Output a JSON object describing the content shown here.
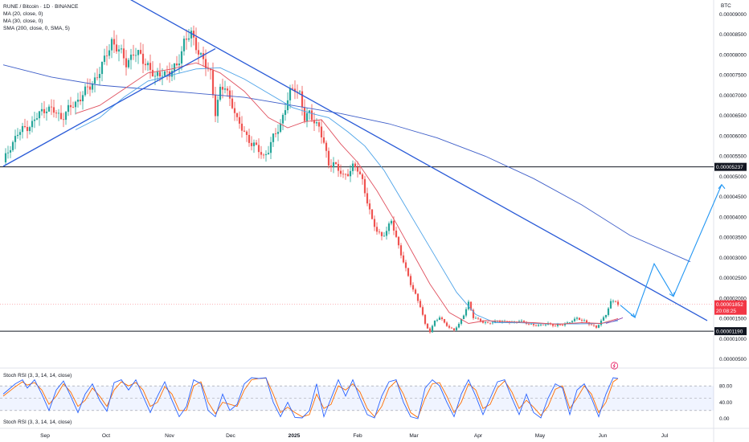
{
  "legend": {
    "symbol": "RUNE / Bitcoin · 1D · BINANCE",
    "ma20": "MA (20, close, 0)",
    "ma30": "MA (30, close, 0)",
    "sma200": "SMA (200, close, 0, SMA, 5)"
  },
  "stoch_legend_top": "Stoch RSI (3, 3, 14, 14, close)",
  "stoch_legend_bottom": "Stoch RSI (3, 3, 14, 14, close)",
  "currency": "BTC",
  "colors": {
    "up": "#26a69a",
    "down": "#ef5350",
    "trend": "#2a5bd7",
    "ma20": "#e05260",
    "ma30": "#4da3e8",
    "sma200": "#3f5fc9",
    "rsi_k": "#2962ff",
    "rsi_d": "#ff6d00",
    "current_tag": "#f23645",
    "level_tag": "#131722"
  },
  "chart_data": {
    "type": "candlestick",
    "x_ticks": [
      "Sep",
      "Oct",
      "Nov",
      "Dec",
      "2025",
      "Feb",
      "Mar",
      "Apr",
      "May",
      "Jun",
      "Jul"
    ],
    "y_ticks": [
      "0.00009000",
      "0.00008500",
      "0.00008000",
      "0.00007500",
      "0.00007000",
      "0.00006500",
      "0.00006000",
      "0.00005500",
      "0.00005000",
      "0.00004500",
      "0.00004000",
      "0.00003500",
      "0.00003000",
      "0.00002500",
      "0.00002000",
      "0.00001500",
      "0.00001000",
      "0.00000500"
    ],
    "y_range": [
      4e-06,
      9.15e-05
    ],
    "horizontal_levels": [
      {
        "value": "0.00005237",
        "price": 5.237e-05
      },
      {
        "value": "0.00001190",
        "price": 1.19e-05
      }
    ],
    "current_price": {
      "value": "0.00001852",
      "countdown": "20:08:25",
      "price": 1.852e-05
    },
    "price_path": [
      [
        0,
        5.35e-05
      ],
      [
        3,
        5.75e-05
      ],
      [
        6,
        6.05e-05
      ],
      [
        9,
        6.2e-05
      ],
      [
        12,
        6.3e-05
      ],
      [
        15,
        6.55e-05
      ],
      [
        18,
        6.7e-05
      ],
      [
        21,
        6.6e-05
      ],
      [
        24,
        6.45e-05
      ],
      [
        27,
        6.65e-05
      ],
      [
        30,
        6.8e-05
      ],
      [
        33,
        7.05e-05
      ],
      [
        36,
        7.2e-05
      ],
      [
        39,
        7.5e-05
      ],
      [
        42,
        7.85e-05
      ],
      [
        45,
        8.35e-05
      ],
      [
        48,
        8.1e-05
      ],
      [
        51,
        7.8e-05
      ],
      [
        54,
        8.05e-05
      ],
      [
        57,
        7.95e-05
      ],
      [
        60,
        7.75e-05
      ],
      [
        63,
        7.4e-05
      ],
      [
        66,
        7.6e-05
      ],
      [
        69,
        7.5e-05
      ],
      [
        72,
        7.75e-05
      ],
      [
        75,
        8.3e-05
      ],
      [
        78,
        8.5e-05
      ],
      [
        80,
        8.25e-05
      ],
      [
        82,
        7.95e-05
      ],
      [
        84,
        7.7e-05
      ],
      [
        86,
        7.55e-05
      ],
      [
        88,
        6.6e-05
      ],
      [
        90,
        7.1e-05
      ],
      [
        92,
        7.2e-05
      ],
      [
        95,
        6.8e-05
      ],
      [
        97,
        6.35e-05
      ],
      [
        100,
        6.1e-05
      ],
      [
        103,
        5.8e-05
      ],
      [
        106,
        5.65e-05
      ],
      [
        108,
        5.5e-05
      ],
      [
        110,
        5.65e-05
      ],
      [
        112,
        5.95e-05
      ],
      [
        115,
        6.3e-05
      ],
      [
        117,
        6.7e-05
      ],
      [
        119,
        7.05e-05
      ],
      [
        121,
        7.2e-05
      ],
      [
        123,
        7.05e-05
      ],
      [
        125,
        6.4e-05
      ],
      [
        127,
        6.55e-05
      ],
      [
        129,
        6.4e-05
      ],
      [
        131,
        6.2e-05
      ],
      [
        133,
        5.8e-05
      ],
      [
        135,
        5.3e-05
      ],
      [
        137,
        5.35e-05
      ],
      [
        139,
        5.15e-05
      ],
      [
        141,
        5e-05
      ],
      [
        143,
        5.1e-05
      ],
      [
        145,
        5.25e-05
      ],
      [
        147,
        5.15e-05
      ],
      [
        149,
        4.9e-05
      ],
      [
        151,
        4.4e-05
      ],
      [
        153,
        3.9e-05
      ],
      [
        155,
        3.65e-05
      ],
      [
        157,
        3.55e-05
      ],
      [
        159,
        3.65e-05
      ],
      [
        161,
        3.9e-05
      ],
      [
        163,
        3.5e-05
      ],
      [
        165,
        3.1e-05
      ],
      [
        167,
        2.7e-05
      ],
      [
        169,
        2.35e-05
      ],
      [
        171,
        2.1e-05
      ],
      [
        173,
        1.8e-05
      ],
      [
        175,
        1.35e-05
      ],
      [
        177,
        1.18e-05
      ],
      [
        179,
        1.45e-05
      ],
      [
        181,
        1.52e-05
      ],
      [
        183,
        1.4e-05
      ],
      [
        185,
        1.28e-05
      ],
      [
        187,
        1.22e-05
      ],
      [
        189,
        1.35e-05
      ],
      [
        191,
        1.6e-05
      ],
      [
        193,
        1.9e-05
      ],
      [
        195,
        1.52e-05
      ],
      [
        197,
        1.48e-05
      ],
      [
        199,
        1.42e-05
      ],
      [
        201,
        1.38e-05
      ],
      [
        203,
        1.4e-05
      ],
      [
        205,
        1.45e-05
      ],
      [
        208,
        1.42e-05
      ],
      [
        211,
        1.4e-05
      ],
      [
        214,
        1.45e-05
      ],
      [
        217,
        1.38e-05
      ],
      [
        220,
        1.35e-05
      ],
      [
        223,
        1.33e-05
      ],
      [
        226,
        1.38e-05
      ],
      [
        229,
        1.32e-05
      ],
      [
        232,
        1.35e-05
      ],
      [
        235,
        1.42e-05
      ],
      [
        238,
        1.5e-05
      ],
      [
        241,
        1.45e-05
      ],
      [
        244,
        1.33e-05
      ],
      [
        246,
        1.28e-05
      ],
      [
        248,
        1.45e-05
      ],
      [
        250,
        1.6e-05
      ],
      [
        252,
        1.9e-05
      ],
      [
        254,
        1.95e-05
      ],
      [
        255,
        1.852e-05
      ]
    ],
    "ma20_path": [
      [
        30,
        6.55e-05
      ],
      [
        40,
        6.75e-05
      ],
      [
        50,
        7.15e-05
      ],
      [
        60,
        7.55e-05
      ],
      [
        70,
        7.65e-05
      ],
      [
        80,
        7.8e-05
      ],
      [
        90,
        7.55e-05
      ],
      [
        100,
        7.1e-05
      ],
      [
        110,
        6.45e-05
      ],
      [
        118,
        6.2e-05
      ],
      [
        125,
        6.35e-05
      ],
      [
        132,
        6.4e-05
      ],
      [
        140,
        5.8e-05
      ],
      [
        147,
        5.35e-05
      ],
      [
        155,
        4.65e-05
      ],
      [
        163,
        3.85e-05
      ],
      [
        170,
        3.1e-05
      ],
      [
        177,
        2.35e-05
      ],
      [
        185,
        1.65e-05
      ],
      [
        193,
        1.38e-05
      ],
      [
        200,
        1.45e-05
      ],
      [
        210,
        1.42e-05
      ],
      [
        220,
        1.4e-05
      ],
      [
        230,
        1.36e-05
      ],
      [
        240,
        1.4e-05
      ],
      [
        248,
        1.38e-05
      ],
      [
        255,
        1.5e-05
      ]
    ],
    "ma30_path": [
      [
        30,
        6.15e-05
      ],
      [
        40,
        6.45e-05
      ],
      [
        50,
        6.95e-05
      ],
      [
        60,
        7.35e-05
      ],
      [
        70,
        7.5e-05
      ],
      [
        80,
        7.65e-05
      ],
      [
        90,
        7.68e-05
      ],
      [
        100,
        7.4e-05
      ],
      [
        110,
        7.05e-05
      ],
      [
        120,
        6.7e-05
      ],
      [
        128,
        6.55e-05
      ],
      [
        135,
        6.45e-05
      ],
      [
        143,
        6.1e-05
      ],
      [
        150,
        5.75e-05
      ],
      [
        158,
        5.15e-05
      ],
      [
        165,
        4.45e-05
      ],
      [
        172,
        3.75e-05
      ],
      [
        180,
        2.95e-05
      ],
      [
        188,
        2.15e-05
      ],
      [
        196,
        1.6e-05
      ],
      [
        204,
        1.4e-05
      ],
      [
        214,
        1.4e-05
      ],
      [
        226,
        1.37e-05
      ],
      [
        238,
        1.37e-05
      ],
      [
        248,
        1.38e-05
      ],
      [
        255,
        1.45e-05
      ]
    ],
    "sma200_path": [
      [
        0,
        7.75e-05
      ],
      [
        20,
        7.45e-05
      ],
      [
        40,
        7.25e-05
      ],
      [
        60,
        7.15e-05
      ],
      [
        80,
        7.05e-05
      ],
      [
        100,
        6.95e-05
      ],
      [
        120,
        6.75e-05
      ],
      [
        140,
        6.55e-05
      ],
      [
        160,
        6.3e-05
      ],
      [
        180,
        5.95e-05
      ],
      [
        200,
        5.5e-05
      ],
      [
        220,
        4.95e-05
      ],
      [
        240,
        4.3e-05
      ],
      [
        260,
        3.55e-05
      ],
      [
        285,
        2.9e-05
      ]
    ],
    "stoch_rsi_labels": [
      "80.00",
      "40.00",
      "0.00"
    ],
    "stoch_rsi_k": [
      [
        0,
        60
      ],
      [
        5,
        85
      ],
      [
        8,
        95
      ],
      [
        10,
        75
      ],
      [
        13,
        95
      ],
      [
        16,
        60
      ],
      [
        19,
        20
      ],
      [
        22,
        70
      ],
      [
        25,
        92
      ],
      [
        28,
        55
      ],
      [
        31,
        15
      ],
      [
        34,
        60
      ],
      [
        37,
        85
      ],
      [
        40,
        45
      ],
      [
        43,
        18
      ],
      [
        46,
        88
      ],
      [
        49,
        95
      ],
      [
        52,
        70
      ],
      [
        55,
        95
      ],
      [
        58,
        55
      ],
      [
        61,
        15
      ],
      [
        64,
        55
      ],
      [
        67,
        90
      ],
      [
        70,
        45
      ],
      [
        73,
        5
      ],
      [
        76,
        30
      ],
      [
        79,
        95
      ],
      [
        82,
        85
      ],
      [
        85,
        20
      ],
      [
        88,
        5
      ],
      [
        91,
        60
      ],
      [
        94,
        20
      ],
      [
        97,
        35
      ],
      [
        100,
        85
      ],
      [
        103,
        100
      ],
      [
        106,
        98
      ],
      [
        109,
        100
      ],
      [
        112,
        40
      ],
      [
        115,
        5
      ],
      [
        118,
        40
      ],
      [
        121,
        3
      ],
      [
        124,
        2
      ],
      [
        127,
        20
      ],
      [
        130,
        85
      ],
      [
        133,
        5
      ],
      [
        136,
        50
      ],
      [
        139,
        95
      ],
      [
        142,
        55
      ],
      [
        145,
        95
      ],
      [
        148,
        50
      ],
      [
        151,
        10
      ],
      [
        154,
        2
      ],
      [
        157,
        55
      ],
      [
        160,
        90
      ],
      [
        163,
        95
      ],
      [
        166,
        40
      ],
      [
        169,
        5
      ],
      [
        172,
        0
      ],
      [
        175,
        75
      ],
      [
        178,
        95
      ],
      [
        181,
        80
      ],
      [
        184,
        40
      ],
      [
        187,
        5
      ],
      [
        190,
        60
      ],
      [
        193,
        95
      ],
      [
        196,
        55
      ],
      [
        199,
        10
      ],
      [
        202,
        50
      ],
      [
        205,
        90
      ],
      [
        208,
        95
      ],
      [
        211,
        50
      ],
      [
        214,
        10
      ],
      [
        217,
        60
      ],
      [
        220,
        15
      ],
      [
        223,
        2
      ],
      [
        226,
        50
      ],
      [
        229,
        85
      ],
      [
        232,
        75
      ],
      [
        235,
        10
      ],
      [
        238,
        70
      ],
      [
        241,
        85
      ],
      [
        244,
        50
      ],
      [
        247,
        5
      ],
      [
        250,
        60
      ],
      [
        253,
        100
      ],
      [
        255,
        98
      ]
    ],
    "stoch_rsi_d": [
      [
        0,
        55
      ],
      [
        5,
        78
      ],
      [
        8,
        90
      ],
      [
        10,
        82
      ],
      [
        13,
        88
      ],
      [
        16,
        70
      ],
      [
        19,
        35
      ],
      [
        22,
        55
      ],
      [
        25,
        85
      ],
      [
        28,
        65
      ],
      [
        31,
        30
      ],
      [
        34,
        45
      ],
      [
        37,
        75
      ],
      [
        40,
        55
      ],
      [
        43,
        30
      ],
      [
        46,
        70
      ],
      [
        49,
        90
      ],
      [
        52,
        80
      ],
      [
        55,
        88
      ],
      [
        58,
        70
      ],
      [
        61,
        30
      ],
      [
        64,
        40
      ],
      [
        67,
        78
      ],
      [
        70,
        60
      ],
      [
        73,
        20
      ],
      [
        76,
        20
      ],
      [
        79,
        80
      ],
      [
        82,
        90
      ],
      [
        85,
        40
      ],
      [
        88,
        12
      ],
      [
        91,
        40
      ],
      [
        94,
        35
      ],
      [
        97,
        30
      ],
      [
        100,
        70
      ],
      [
        103,
        95
      ],
      [
        106,
        98
      ],
      [
        109,
        99
      ],
      [
        112,
        60
      ],
      [
        115,
        15
      ],
      [
        118,
        28
      ],
      [
        121,
        15
      ],
      [
        124,
        5
      ],
      [
        127,
        10
      ],
      [
        130,
        60
      ],
      [
        133,
        25
      ],
      [
        136,
        35
      ],
      [
        139,
        80
      ],
      [
        142,
        70
      ],
      [
        145,
        85
      ],
      [
        148,
        65
      ],
      [
        151,
        25
      ],
      [
        154,
        5
      ],
      [
        157,
        30
      ],
      [
        160,
        75
      ],
      [
        163,
        92
      ],
      [
        166,
        60
      ],
      [
        169,
        15
      ],
      [
        172,
        3
      ],
      [
        175,
        50
      ],
      [
        178,
        85
      ],
      [
        181,
        88
      ],
      [
        184,
        55
      ],
      [
        187,
        15
      ],
      [
        190,
        40
      ],
      [
        193,
        85
      ],
      [
        196,
        70
      ],
      [
        199,
        25
      ],
      [
        202,
        35
      ],
      [
        205,
        75
      ],
      [
        208,
        92
      ],
      [
        211,
        65
      ],
      [
        214,
        25
      ],
      [
        217,
        45
      ],
      [
        220,
        28
      ],
      [
        223,
        8
      ],
      [
        226,
        30
      ],
      [
        229,
        72
      ],
      [
        232,
        80
      ],
      [
        235,
        25
      ],
      [
        238,
        50
      ],
      [
        241,
        80
      ],
      [
        244,
        60
      ],
      [
        247,
        15
      ],
      [
        250,
        40
      ],
      [
        253,
        90
      ],
      [
        255,
        98
      ]
    ]
  }
}
